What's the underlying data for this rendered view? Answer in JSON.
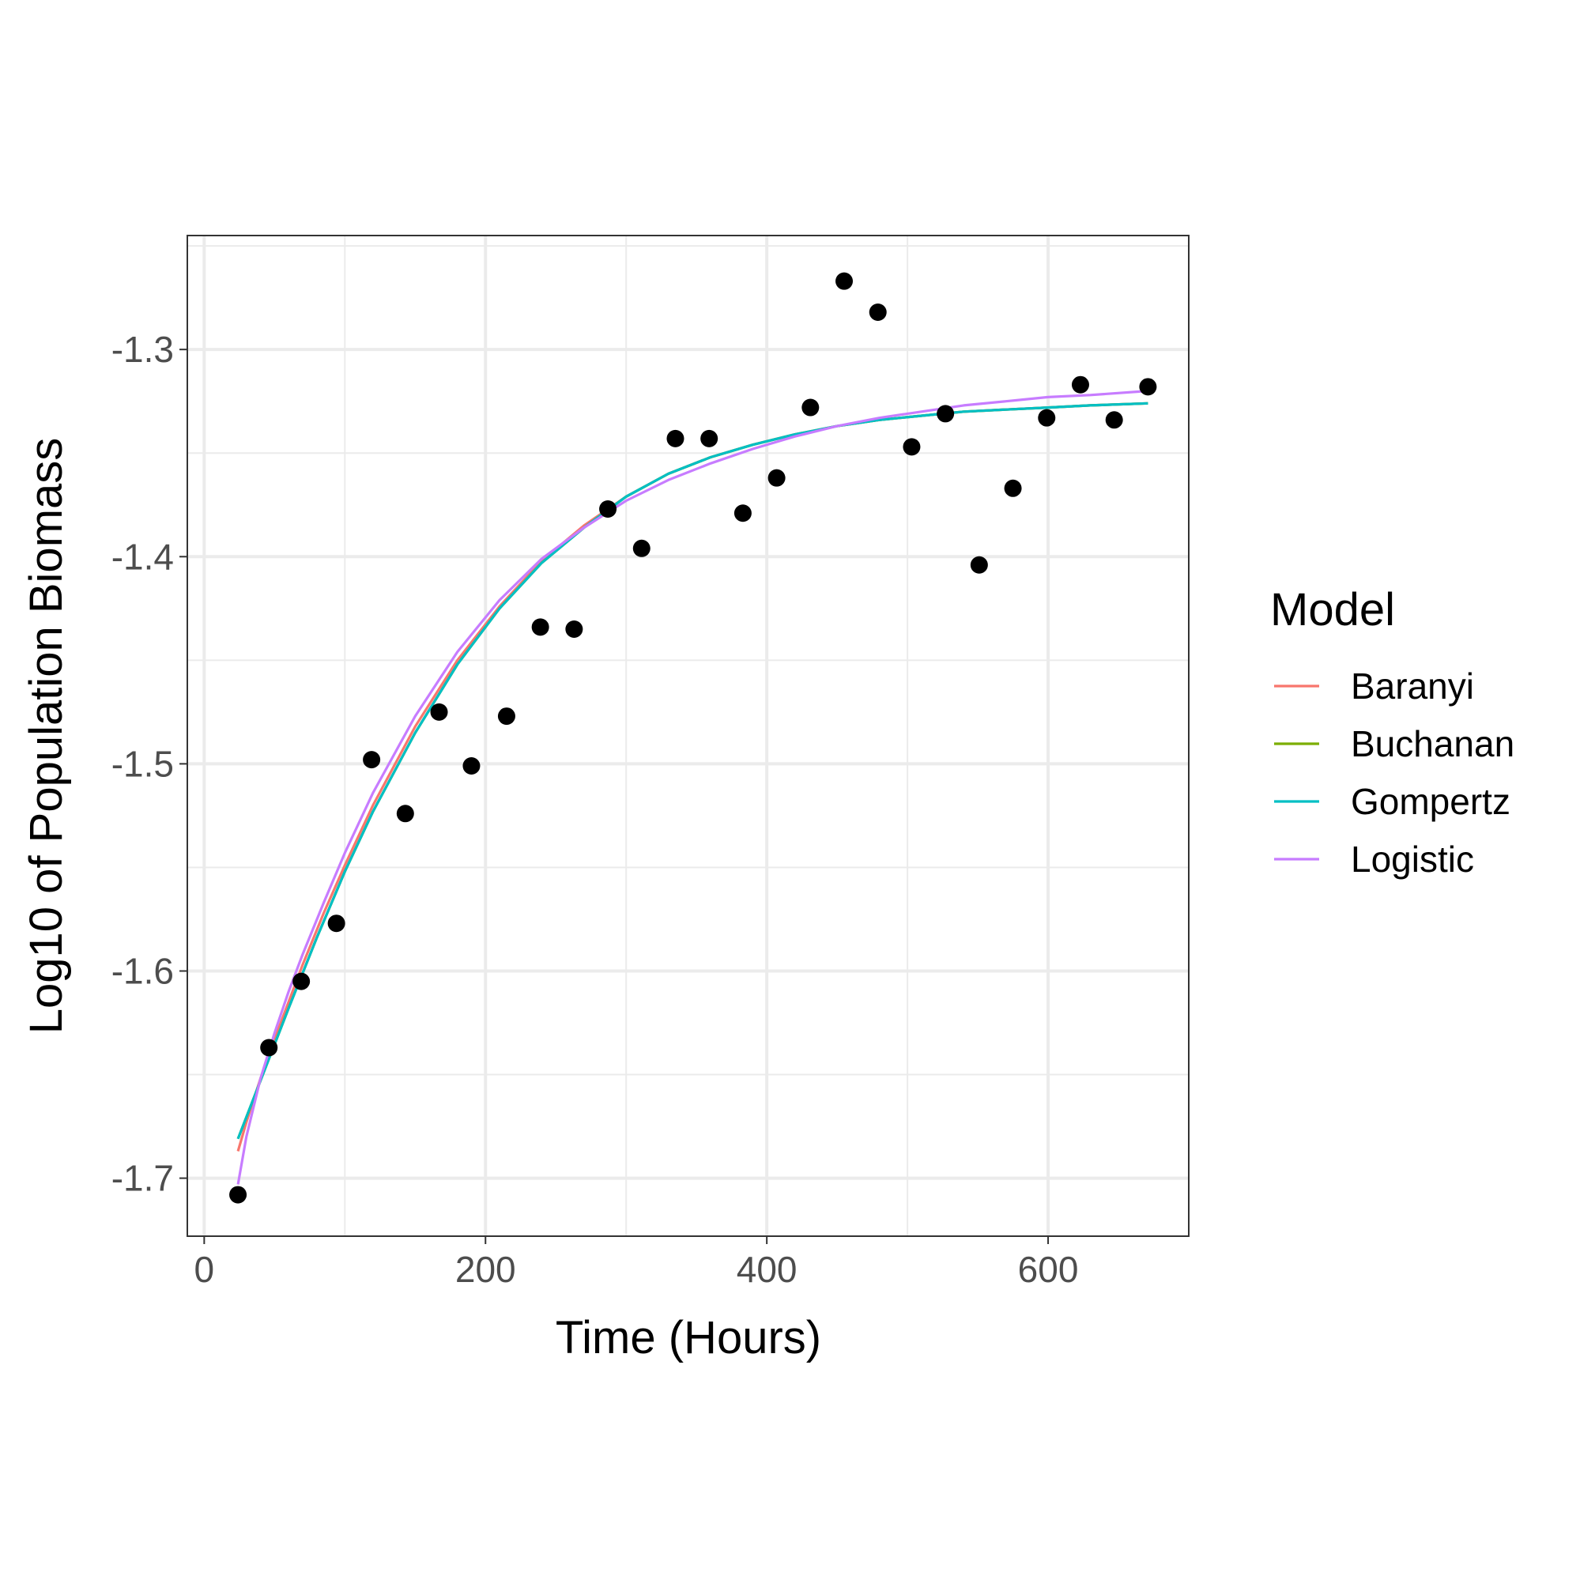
{
  "chart_data": {
    "type": "line",
    "title": "",
    "xlabel": "Time (Hours)",
    "ylabel": "Log10 of Population Biomass",
    "xlim": [
      -12,
      700
    ],
    "ylim": [
      -1.728,
      -1.245
    ],
    "x_ticks": [
      0,
      200,
      400,
      600
    ],
    "x_tick_labels": [
      "0",
      "200",
      "400",
      "600"
    ],
    "y_ticks": [
      -1.7,
      -1.6,
      -1.5,
      -1.4,
      -1.3
    ],
    "y_tick_labels": [
      "-1.7",
      "-1.6",
      "-1.5",
      "-1.4",
      "-1.3"
    ],
    "grid": true,
    "legend": {
      "title": "Model",
      "position": "right"
    },
    "observations": {
      "x": [
        24,
        46,
        69,
        94,
        119,
        143,
        167,
        190,
        215,
        239,
        263,
        287,
        311,
        335,
        359,
        383,
        407,
        431,
        455,
        479,
        503,
        527,
        551,
        575,
        599,
        623,
        647,
        671
      ],
      "y": [
        -1.708,
        -1.637,
        -1.605,
        -1.577,
        -1.498,
        -1.524,
        -1.475,
        -1.501,
        -1.477,
        -1.434,
        -1.435,
        -1.377,
        -1.396,
        -1.343,
        -1.343,
        -1.379,
        -1.362,
        -1.328,
        -1.267,
        -1.282,
        -1.347,
        -1.331,
        -1.404,
        -1.367,
        -1.333,
        -1.317,
        -1.334,
        -1.318
      ]
    },
    "series": [
      {
        "name": "Baranyi",
        "color": "#F8766D",
        "x": [
          24,
          30,
          40,
          50,
          60,
          70,
          85,
          100,
          120,
          150,
          180,
          210,
          240,
          270,
          300,
          330,
          360,
          390,
          420,
          450,
          480,
          510,
          540,
          570,
          600,
          630,
          671
        ],
        "y": [
          -1.687,
          -1.673,
          -1.652,
          -1.633,
          -1.615,
          -1.597,
          -1.572,
          -1.549,
          -1.52,
          -1.482,
          -1.45,
          -1.424,
          -1.402,
          -1.385,
          -1.371,
          -1.36,
          -1.352,
          -1.346,
          -1.341,
          -1.337,
          -1.334,
          -1.332,
          -1.33,
          -1.329,
          -1.328,
          -1.327,
          -1.326
        ]
      },
      {
        "name": "Buchanan",
        "color": "#7CAE00",
        "x": [
          24,
          40,
          60,
          80,
          100,
          120,
          150,
          180,
          210,
          240,
          270,
          300,
          330,
          360,
          390,
          420,
          450,
          480,
          510,
          540,
          570,
          600,
          630,
          671
        ],
        "y": [
          -1.681,
          -1.653,
          -1.618,
          -1.584,
          -1.552,
          -1.523,
          -1.485,
          -1.452,
          -1.425,
          -1.403,
          -1.386,
          -1.371,
          -1.36,
          -1.352,
          -1.346,
          -1.341,
          -1.337,
          -1.334,
          -1.332,
          -1.33,
          -1.329,
          -1.328,
          -1.327,
          -1.326
        ]
      },
      {
        "name": "Gompertz",
        "color": "#00BFC4",
        "x": [
          24,
          40,
          60,
          80,
          100,
          120,
          150,
          180,
          210,
          240,
          270,
          300,
          330,
          360,
          390,
          420,
          450,
          480,
          510,
          540,
          570,
          600,
          630,
          671
        ],
        "y": [
          -1.681,
          -1.653,
          -1.618,
          -1.584,
          -1.552,
          -1.523,
          -1.485,
          -1.452,
          -1.425,
          -1.403,
          -1.386,
          -1.371,
          -1.36,
          -1.352,
          -1.346,
          -1.341,
          -1.337,
          -1.334,
          -1.332,
          -1.33,
          -1.329,
          -1.328,
          -1.327,
          -1.326
        ]
      },
      {
        "name": "Logistic",
        "color": "#C77CFF",
        "x": [
          24,
          30,
          40,
          50,
          60,
          70,
          85,
          100,
          120,
          150,
          180,
          210,
          240,
          270,
          300,
          330,
          360,
          390,
          420,
          450,
          480,
          510,
          540,
          570,
          600,
          630,
          671
        ],
        "y": [
          -1.703,
          -1.68,
          -1.652,
          -1.63,
          -1.61,
          -1.592,
          -1.567,
          -1.543,
          -1.514,
          -1.477,
          -1.446,
          -1.421,
          -1.401,
          -1.386,
          -1.373,
          -1.363,
          -1.355,
          -1.348,
          -1.342,
          -1.337,
          -1.333,
          -1.33,
          -1.327,
          -1.325,
          -1.323,
          -1.322,
          -1.32
        ]
      }
    ]
  }
}
